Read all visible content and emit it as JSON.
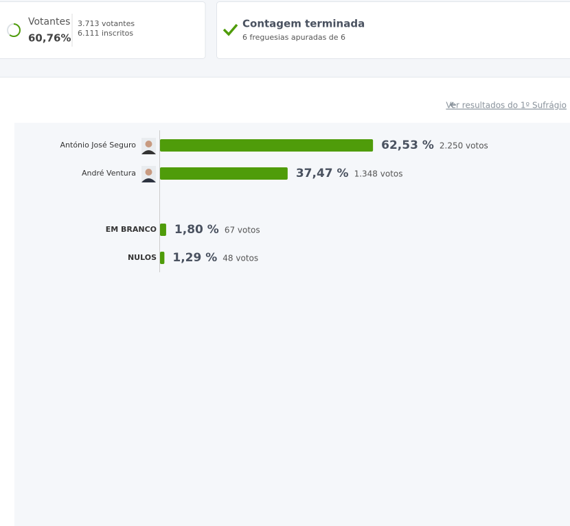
{
  "summary": {
    "turnout": {
      "label": "Votantes",
      "value": {
        "value": 60.76,
        "label": "60,76%"
      },
      "voters": "3.713 votantes",
      "registered": "6.111 inscritos"
    },
    "count": {
      "title": "Contagem terminada",
      "subtitle": "6 freguesias apuradas de 6"
    }
  },
  "link": "Ver resultados do 1º Sufrágio",
  "candidates": [
    {
      "name": "António José Seguro",
      "percent": {
        "value": 62.53,
        "label": "62,53 %"
      },
      "votes": "2.250 votos"
    },
    {
      "name": "André Ventura",
      "percent": {
        "value": 37.47,
        "label": "37,47 %"
      },
      "votes": "1.348 votos"
    }
  ],
  "other": [
    {
      "name": "EM BRANCO",
      "percent": {
        "value": 1.8,
        "label": "1,80 %"
      },
      "votes": "67 votos"
    },
    {
      "name": "NULOS",
      "percent": {
        "value": 1.29,
        "label": "1,29 %"
      },
      "votes": "48 votos"
    }
  ]
}
